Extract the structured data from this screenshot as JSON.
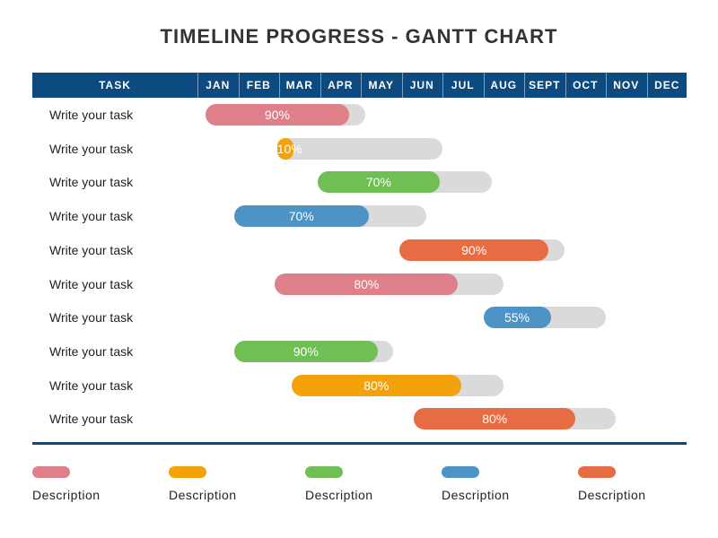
{
  "chart_data": {
    "type": "gantt",
    "title": "TIMELINE PROGRESS - GANTT CHART",
    "task_header": "TASK",
    "months": [
      "JAN",
      "FEB",
      "MAR",
      "APR",
      "MAY",
      "JUN",
      "JUL",
      "AUG",
      "SEPT",
      "OCT",
      "NOV",
      "DEC"
    ],
    "tasks": [
      {
        "label": "Write your task",
        "start": 1.2,
        "end": 5.1,
        "progress": 90,
        "progress_label": "90%",
        "color": "#df7f8a"
      },
      {
        "label": "Write your task",
        "start": 2.95,
        "end": 7.0,
        "progress": 10,
        "progress_label": "10%",
        "color": "#f3a20b"
      },
      {
        "label": "Write your task",
        "start": 3.95,
        "end": 8.2,
        "progress": 70,
        "progress_label": "70%",
        "color": "#70bf55"
      },
      {
        "label": "Write your task",
        "start": 1.9,
        "end": 6.6,
        "progress": 70,
        "progress_label": "70%",
        "color": "#4e93c6"
      },
      {
        "label": "Write your task",
        "start": 5.95,
        "end": 10.0,
        "progress": 90,
        "progress_label": "90%",
        "color": "#e86c43"
      },
      {
        "label": "Write your task",
        "start": 2.9,
        "end": 8.5,
        "progress": 80,
        "progress_label": "80%",
        "color": "#df7f8a"
      },
      {
        "label": "Write your task",
        "start": 8.0,
        "end": 11.0,
        "progress": 55,
        "progress_label": "55%",
        "color": "#4e93c6"
      },
      {
        "label": "Write your task",
        "start": 1.9,
        "end": 5.8,
        "progress": 90,
        "progress_label": "90%",
        "color": "#70bf55"
      },
      {
        "label": "Write your task",
        "start": 3.3,
        "end": 8.5,
        "progress": 80,
        "progress_label": "80%",
        "color": "#f3a20b"
      },
      {
        "label": "Write your task",
        "start": 6.3,
        "end": 11.25,
        "progress": 80,
        "progress_label": "80%",
        "color": "#e86c43"
      }
    ],
    "legend": [
      {
        "label": "Description",
        "color": "#df7f8a"
      },
      {
        "label": "Description",
        "color": "#f3a20b"
      },
      {
        "label": "Description",
        "color": "#70bf55"
      },
      {
        "label": "Description",
        "color": "#4e93c6"
      },
      {
        "label": "Description",
        "color": "#e86c43"
      }
    ],
    "track_color": "#dadada",
    "header_color": "#0d4a80"
  }
}
